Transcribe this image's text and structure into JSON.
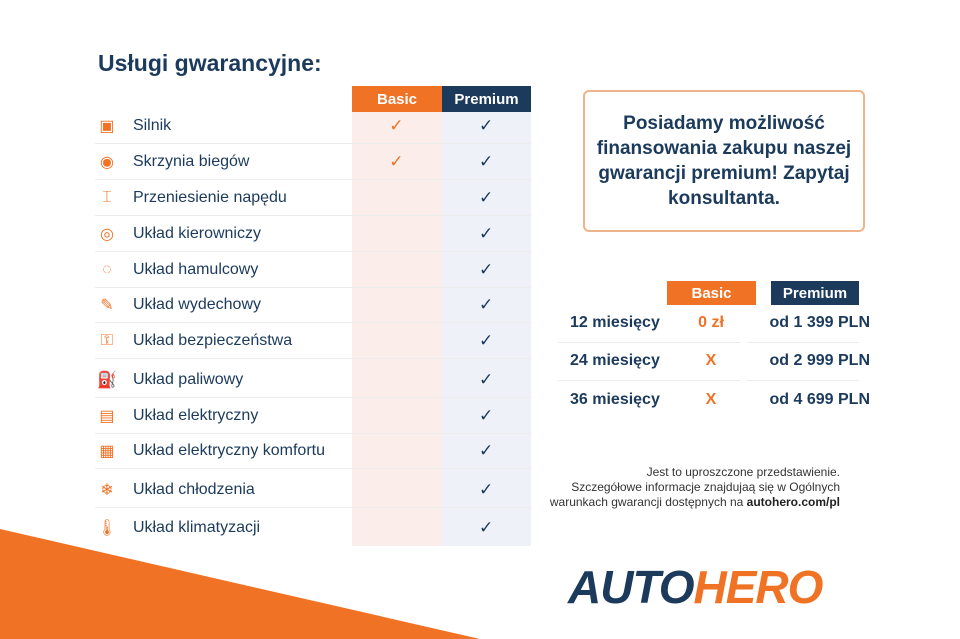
{
  "title": "Usługi gwarancyjne:",
  "columns": {
    "basic": "Basic",
    "premium": "Premium"
  },
  "colors": {
    "orange": "#f07225",
    "navy": "#1b3a5c"
  },
  "services": [
    {
      "label": "Silnik",
      "icon": "engine-icon",
      "basic": "✓",
      "premium": "✓"
    },
    {
      "label": "Skrzynia biegów",
      "icon": "gearbox-icon",
      "basic": "✓",
      "premium": "✓"
    },
    {
      "label": "Przeniesienie napędu",
      "icon": "drivetrain-icon",
      "basic": "",
      "premium": "✓"
    },
    {
      "label": "Układ kierowniczy",
      "icon": "steering-wheel-icon",
      "basic": "",
      "premium": "✓"
    },
    {
      "label": "Układ hamulcowy",
      "icon": "brake-icon",
      "basic": "",
      "premium": "✓"
    },
    {
      "label": "Układ wydechowy",
      "icon": "exhaust-icon",
      "basic": "",
      "premium": "✓"
    },
    {
      "label": "Układ bezpieczeństwa",
      "icon": "seatbelt-icon",
      "basic": "",
      "premium": "✓"
    },
    {
      "label": "Układ paliwowy",
      "icon": "fuel-icon",
      "basic": "",
      "premium": "✓"
    },
    {
      "label": "Układ elektryczny",
      "icon": "battery-icon",
      "basic": "",
      "premium": "✓"
    },
    {
      "label": "Układ elektryczny komfortu",
      "icon": "chip-icon",
      "basic": "",
      "premium": "✓"
    },
    {
      "label": "Układ chłodzenia",
      "icon": "snowflake-icon",
      "basic": "",
      "premium": "✓"
    },
    {
      "label": "Układ klimatyzacji",
      "icon": "thermometer-icon",
      "basic": "",
      "premium": "✓"
    }
  ],
  "promo": "Posiadamy możliwość finansowania zakupu naszej gwarancji premium! Zapytaj konsultanta.",
  "pricing": {
    "basic": "Basic",
    "premium": "Premium",
    "rows": [
      {
        "period": "12 miesięcy",
        "basic": "0 zł",
        "premium": "od 1 399 PLN"
      },
      {
        "period": "24 miesięcy",
        "basic": "X",
        "premium": "od 2 999 PLN"
      },
      {
        "period": "36 miesięcy",
        "basic": "X",
        "premium": "od 4 699 PLN"
      }
    ]
  },
  "note": {
    "line1": "Jest to uproszczone przedstawienie.",
    "line2": "Szczegółowe informacje znajdujaą się w Ogólnych",
    "line3": "warunkach gwarancji dostępnych na ",
    "link": "autohero.com/pl"
  },
  "logo": {
    "part1": "AUTO",
    "part2": "HERO"
  }
}
